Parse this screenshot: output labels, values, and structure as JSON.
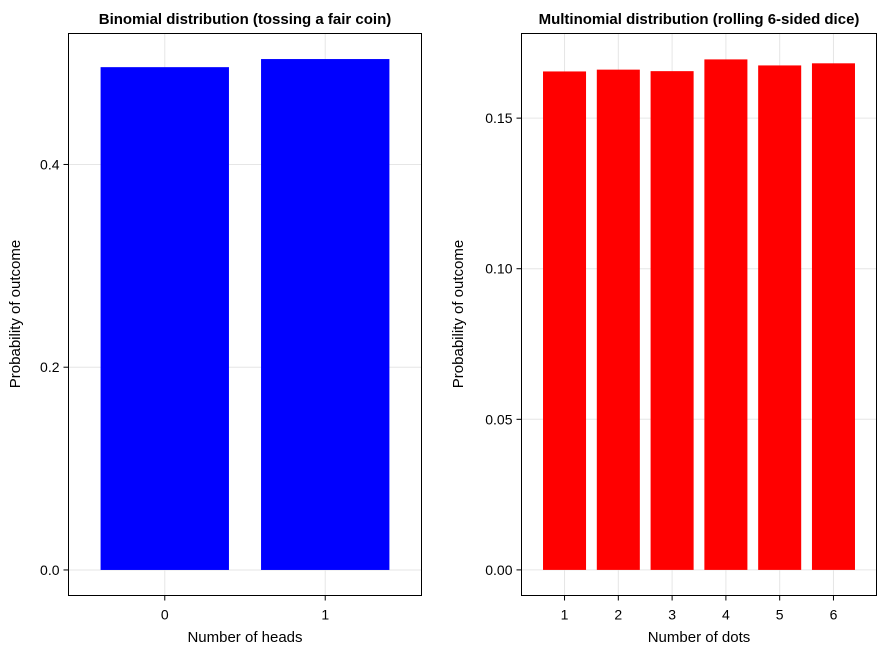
{
  "chart_data": [
    {
      "type": "bar",
      "title": "Binomial distribution (tossing a fair coin)",
      "xlabel": "Number of heads",
      "ylabel": "Probability of outcome",
      "categories": [
        "0",
        "1"
      ],
      "values": [
        0.496,
        0.504
      ],
      "ylim": [
        -0.0252,
        0.5292
      ],
      "yticks": [
        0.0,
        0.2,
        0.4
      ],
      "ytick_labels": [
        "0.0",
        "0.2",
        "0.4"
      ],
      "bar_color": "#0000ff",
      "grid": true
    },
    {
      "type": "bar",
      "title": "Multinomial distribution (rolling 6-sided dice)",
      "xlabel": "Number of dots",
      "ylabel": "Probability of outcome",
      "categories": [
        "1",
        "2",
        "3",
        "4",
        "5",
        "6"
      ],
      "values": [
        0.1655,
        0.1661,
        0.1656,
        0.1695,
        0.1675,
        0.1682
      ],
      "ylim": [
        -0.0085,
        0.1781
      ],
      "yticks": [
        0.0,
        0.05,
        0.1,
        0.15
      ],
      "ytick_labels": [
        "0.00",
        "0.05",
        "0.10",
        "0.15"
      ],
      "bar_color": "#ff0000",
      "grid": true
    }
  ]
}
